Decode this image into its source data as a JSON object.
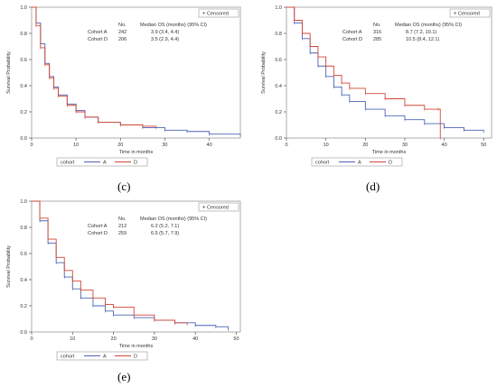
{
  "legend": {
    "censored_label": "Censored",
    "group_title": "cohort",
    "entries": [
      "A",
      "D"
    ]
  },
  "table_header": {
    "n": "No.",
    "median": "Median OS (months) (95% CI)"
  },
  "colors": {
    "A": "#4A63B5",
    "D": "#D24636",
    "axis": "#555555"
  },
  "chart_data": [
    {
      "type": "line",
      "caption": "(c)",
      "ylabel": "Survival Probability",
      "xlabel": "Time in months",
      "xlim": [
        0,
        47
      ],
      "ylim": [
        0,
        1
      ],
      "x_ticks": [
        0,
        10,
        20,
        30,
        40
      ],
      "y_ticks": [
        "0.0",
        "0.2",
        "0.4",
        "0.6",
        "0.8",
        "1.0"
      ],
      "table": [
        {
          "cohort": "Cohort A",
          "n": "242",
          "median": "3.9 (3.4, 4.4)"
        },
        {
          "cohort": "Cohort D",
          "n": "206",
          "median": "3.5 (2.9, 4.4)"
        }
      ],
      "series": [
        {
          "name": "A",
          "x": [
            0,
            1,
            2,
            3,
            4,
            5,
            6,
            8,
            10,
            12,
            15,
            20,
            25,
            30,
            35,
            40,
            47
          ],
          "y": [
            1.0,
            0.88,
            0.72,
            0.57,
            0.47,
            0.39,
            0.33,
            0.26,
            0.21,
            0.16,
            0.12,
            0.1,
            0.08,
            0.06,
            0.05,
            0.03,
            0.02
          ]
        },
        {
          "name": "D",
          "x": [
            0,
            1,
            2,
            3,
            4,
            5,
            6,
            8,
            10,
            12,
            15,
            20,
            25,
            28
          ],
          "y": [
            1.0,
            0.86,
            0.69,
            0.56,
            0.46,
            0.38,
            0.32,
            0.25,
            0.2,
            0.16,
            0.12,
            0.1,
            0.09,
            0.08
          ]
        }
      ]
    },
    {
      "type": "line",
      "caption": "(d)",
      "ylabel": "Survival Probability",
      "xlabel": "Time in months",
      "xlim": [
        0,
        52
      ],
      "ylim": [
        0,
        1
      ],
      "x_ticks": [
        0,
        10,
        20,
        30,
        40,
        50
      ],
      "y_ticks": [
        "0.0",
        "0.2",
        "0.4",
        "0.6",
        "0.8",
        "1.0"
      ],
      "table": [
        {
          "cohort": "Cohort A",
          "n": "316",
          "median": "8.7 (7.2, 10.1)"
        },
        {
          "cohort": "Cohort D",
          "n": "285",
          "median": "10.5 (8.4, 12.1)"
        }
      ],
      "series": [
        {
          "name": "A",
          "x": [
            0,
            2,
            4,
            6,
            8,
            10,
            12,
            14,
            16,
            20,
            25,
            30,
            35,
            40,
            45,
            50
          ],
          "y": [
            1.0,
            0.88,
            0.76,
            0.65,
            0.55,
            0.47,
            0.39,
            0.33,
            0.28,
            0.22,
            0.17,
            0.14,
            0.11,
            0.08,
            0.06,
            0.05
          ]
        },
        {
          "name": "D",
          "x": [
            0,
            2,
            4,
            6,
            8,
            10,
            12,
            14,
            16,
            20,
            25,
            30,
            35,
            38.5,
            39
          ],
          "y": [
            1.0,
            0.9,
            0.8,
            0.7,
            0.62,
            0.55,
            0.48,
            0.42,
            0.38,
            0.34,
            0.3,
            0.25,
            0.22,
            0.22,
            0.0
          ]
        }
      ]
    },
    {
      "type": "line",
      "caption": "(e)",
      "ylabel": "Survival Probability",
      "xlabel": "Time in months",
      "xlim": [
        0,
        51
      ],
      "ylim": [
        0,
        1
      ],
      "x_ticks": [
        0,
        10,
        20,
        30,
        40,
        50
      ],
      "y_ticks": [
        "0.0",
        "0.2",
        "0.4",
        "0.6",
        "0.8",
        "1.0"
      ],
      "table": [
        {
          "cohort": "Cohort A",
          "n": "212",
          "median": "6.2 (5.2, 7.1)"
        },
        {
          "cohort": "Cohort D",
          "n": "259",
          "median": "6.5 (5.7, 7.9)"
        }
      ],
      "series": [
        {
          "name": "A",
          "x": [
            0,
            2,
            4,
            6,
            8,
            10,
            12,
            15,
            18,
            20,
            25,
            30,
            35,
            40,
            45,
            48
          ],
          "y": [
            1.0,
            0.85,
            0.68,
            0.53,
            0.42,
            0.33,
            0.26,
            0.2,
            0.16,
            0.13,
            0.11,
            0.09,
            0.07,
            0.05,
            0.04,
            0.02
          ]
        },
        {
          "name": "D",
          "x": [
            0,
            2,
            4,
            6,
            8,
            10,
            12,
            15,
            18,
            20,
            25,
            30,
            35,
            38
          ],
          "y": [
            1.0,
            0.87,
            0.71,
            0.57,
            0.47,
            0.39,
            0.32,
            0.26,
            0.21,
            0.19,
            0.13,
            0.09,
            0.07,
            0.06
          ]
        }
      ]
    }
  ]
}
